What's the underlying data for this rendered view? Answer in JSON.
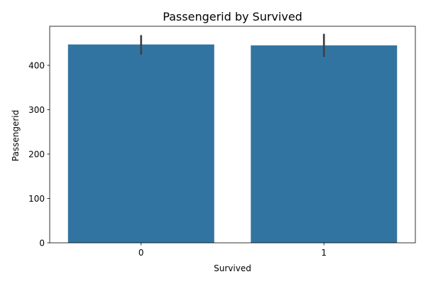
{
  "chart_data": {
    "type": "bar",
    "title": "Passengerid by Survived",
    "xlabel": "Survived",
    "ylabel": "Passengerid",
    "categories": [
      "0",
      "1"
    ],
    "values": [
      447,
      445
    ],
    "error_bars": [
      {
        "low": 424,
        "high": 468
      },
      {
        "low": 419,
        "high": 471
      }
    ],
    "yticks": [
      0,
      100,
      200,
      300,
      400
    ],
    "ylim": [
      0,
      488
    ],
    "grid": false,
    "legend": "none",
    "colors": {
      "bar": "#3274a1",
      "error_bar": "#424242",
      "axis": "#000000"
    }
  }
}
